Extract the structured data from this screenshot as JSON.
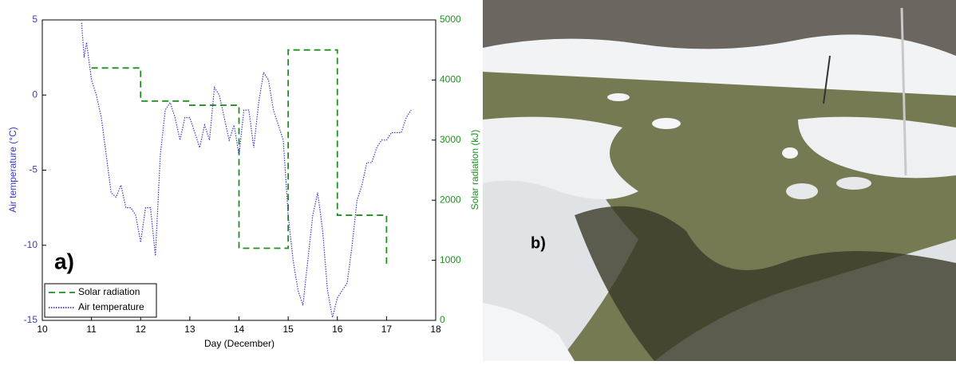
{
  "chart_data": {
    "type": "line",
    "panel_label": "a)",
    "xlabel": "Day (December)",
    "ylabel": "Air temperature (°C)",
    "y2label": "Solar radiation (kJ)",
    "xlim": [
      10,
      18
    ],
    "xticks": [
      10,
      11,
      12,
      13,
      14,
      15,
      16,
      17,
      18
    ],
    "ylim": [
      -15,
      5
    ],
    "yticks": [
      -15,
      -10,
      -5,
      0,
      5
    ],
    "y2lim": [
      0,
      5000
    ],
    "y2ticks": [
      0,
      1000,
      2000,
      3000,
      4000,
      5000
    ],
    "legend": "lower left",
    "series": [
      {
        "name": "Solar radiation",
        "color": "#1f8f1f",
        "axis": "y2",
        "style": "dashed",
        "x": [
          11,
          12,
          12,
          13,
          13,
          14,
          14,
          15,
          15,
          16,
          16,
          17,
          17
        ],
        "values": [
          4200,
          4200,
          3650,
          3650,
          3580,
          3580,
          1200,
          1200,
          4500,
          4500,
          1750,
          1750,
          900
        ]
      },
      {
        "name": "Air temperature",
        "color": "#3a3acc",
        "style": "dotted",
        "x": [
          10.8,
          10.85,
          10.9,
          11.0,
          11.1,
          11.2,
          11.3,
          11.4,
          11.5,
          11.6,
          11.7,
          11.8,
          11.9,
          12.0,
          12.1,
          12.2,
          12.3,
          12.4,
          12.5,
          12.6,
          12.7,
          12.8,
          12.9,
          13.0,
          13.1,
          13.2,
          13.3,
          13.4,
          13.5,
          13.6,
          13.7,
          13.8,
          13.9,
          14.0,
          14.1,
          14.2,
          14.3,
          14.4,
          14.5,
          14.6,
          14.7,
          14.8,
          14.9,
          15.0,
          15.1,
          15.2,
          15.3,
          15.4,
          15.5,
          15.6,
          15.7,
          15.8,
          15.9,
          16.0,
          16.1,
          16.2,
          16.3,
          16.4,
          16.5,
          16.6,
          16.7,
          16.8,
          16.9,
          17.0,
          17.1,
          17.2,
          17.3,
          17.4,
          17.5
        ],
        "values": [
          4.8,
          2.5,
          3.5,
          1.0,
          0,
          -1.5,
          -4,
          -6.5,
          -6.8,
          -6,
          -7.5,
          -7.5,
          -8,
          -9.8,
          -7.5,
          -7.5,
          -10.7,
          -4,
          -1,
          -0.5,
          -1.5,
          -3,
          -1.5,
          -1.5,
          -2.5,
          -3.5,
          -2,
          -3,
          0.5,
          0,
          -1.5,
          -3,
          -2,
          -4,
          -1,
          -1,
          -3.5,
          -0.5,
          1.5,
          1,
          -1,
          -2,
          -3,
          -8,
          -11,
          -13,
          -14,
          -11,
          -8,
          -6.5,
          -9,
          -13,
          -14.8,
          -13.5,
          -13,
          -12.5,
          -10,
          -7,
          -6,
          -4.5,
          -4.5,
          -3.5,
          -3,
          -3,
          -2.5,
          -2.5,
          -2.5,
          -1.5,
          -1
        ]
      }
    ]
  },
  "photo": {
    "label": "b)"
  }
}
